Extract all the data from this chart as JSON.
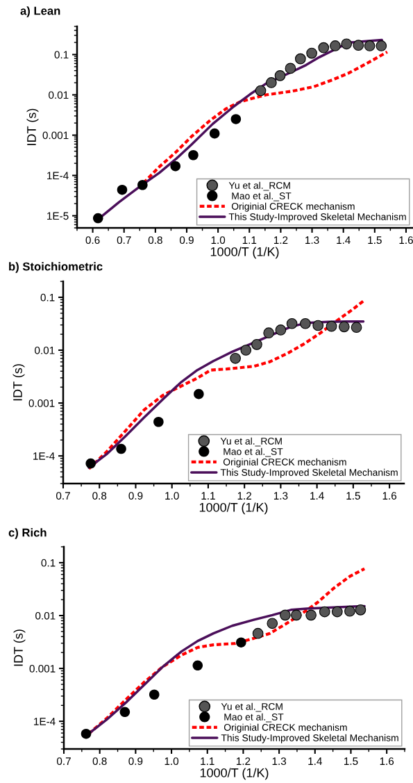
{
  "chart_data": [
    {
      "type": "line",
      "title": "a) Lean",
      "xlabel": "1000/T (1/K)",
      "ylabel": "IDT (s)",
      "log": "y",
      "xlim": [
        0.55,
        1.62
      ],
      "xticks": [
        {
          "value": 0.6,
          "label": "0.6"
        },
        {
          "value": 0.7,
          "label": "0.7"
        },
        {
          "value": 0.8,
          "label": "0.8"
        },
        {
          "value": 0.9,
          "label": "0.9"
        },
        {
          "value": 1.0,
          "label": "1.0"
        },
        {
          "value": 1.1,
          "label": "1.1"
        },
        {
          "value": 1.2,
          "label": "1.2"
        },
        {
          "value": 1.3,
          "label": "1.3"
        },
        {
          "value": 1.4,
          "label": "1.4"
        },
        {
          "value": 1.5,
          "label": "1.5"
        },
        {
          "value": 1.6,
          "label": "1.6"
        }
      ],
      "ylim": [
        5e-06,
        0.5
      ],
      "yticks": [
        {
          "value": 1e-05,
          "label": "1E-5"
        },
        {
          "value": 0.0001,
          "label": "1E-4"
        },
        {
          "value": 0.001,
          "label": "0.001"
        },
        {
          "value": 0.01,
          "label": "0.01"
        },
        {
          "value": 0.1,
          "label": "0.1"
        }
      ],
      "grid": false,
      "legend": "bottom right",
      "series": [
        {
          "name": "Yu et al._RCM",
          "type": "scatter",
          "marker": "circle",
          "color": "#555555",
          "x": [
            1.136,
            1.17,
            1.198,
            1.231,
            1.263,
            1.299,
            1.337,
            1.374,
            1.41,
            1.448,
            1.484,
            1.521
          ],
          "values": [
            0.0127,
            0.0201,
            0.03,
            0.0455,
            0.0785,
            0.108,
            0.148,
            0.165,
            0.183,
            0.17,
            0.165,
            0.165
          ]
        },
        {
          "name": " Mao et al._ST",
          "type": "scatter",
          "marker": "circle",
          "color": "#000000",
          "x": [
            0.617,
            0.694,
            0.759,
            0.864,
            0.921,
            0.989,
            1.057
          ],
          "values": [
            8.7e-06,
            4.4e-05,
            5.8e-05,
            0.00017,
            0.00032,
            0.0011,
            0.0025
          ]
        },
        {
          "name": " Originial CRECK mechanism",
          "line_style": "dashed",
          "marker": "none",
          "color": "#ff0000",
          "x": [
            0.762,
            0.813,
            0.864,
            0.915,
            0.974,
            1.025,
            1.068,
            1.11,
            1.153,
            1.238,
            1.306,
            1.366,
            1.417,
            1.476,
            1.54
          ],
          "values": [
            6.5e-05,
            0.000165,
            0.00037,
            0.00092,
            0.0023,
            0.0045,
            0.0066,
            0.0082,
            0.01,
            0.0124,
            0.016,
            0.0237,
            0.0347,
            0.061,
            0.116
          ]
        },
        {
          "name": "This Study-Improved Skeletal Mechanism",
          "line_style": "solid",
          "marker": "none",
          "color": "#4b0f5a",
          "x": [
            0.626,
            0.685,
            0.753,
            0.813,
            0.864,
            0.915,
            0.983,
            1.051,
            1.102,
            1.153,
            1.221,
            1.281,
            1.323,
            1.374,
            1.417,
            1.459,
            1.523
          ],
          "values": [
            9.3e-06,
            2.2e-05,
            5.5e-05,
            0.000117,
            0.00025,
            0.00058,
            0.0019,
            0.0052,
            0.0103,
            0.019,
            0.033,
            0.055,
            0.086,
            0.135,
            0.198,
            0.21,
            0.23
          ]
        }
      ]
    },
    {
      "type": "line",
      "title": "b) Stoichiometric",
      "xlabel": "1000/T (1/K)",
      "ylabel": "IDT (s)",
      "log": "y",
      "xlim": [
        0.7,
        1.64
      ],
      "xticks": [
        {
          "value": 0.7,
          "label": "0.7"
        },
        {
          "value": 0.8,
          "label": "0.8"
        },
        {
          "value": 0.9,
          "label": "0.9"
        },
        {
          "value": 1.0,
          "label": "1.0"
        },
        {
          "value": 1.1,
          "label": "1.1"
        },
        {
          "value": 1.2,
          "label": "1.2"
        },
        {
          "value": 1.3,
          "label": "1.3"
        },
        {
          "value": 1.4,
          "label": "1.4"
        },
        {
          "value": 1.5,
          "label": "1.5"
        },
        {
          "value": 1.6,
          "label": "1.6"
        }
      ],
      "ylim": [
        3e-05,
        0.2
      ],
      "yticks": [
        {
          "value": 0.0001,
          "label": "1E-4"
        },
        {
          "value": 0.001,
          "label": "0.001"
        },
        {
          "value": 0.01,
          "label": "0.01"
        },
        {
          "value": 0.1,
          "label": "0.1"
        }
      ],
      "grid": false,
      "legend": "bottom right",
      "series": [
        {
          "name": "Yu et al._RCM",
          "type": "scatter",
          "marker": "circle",
          "color": "#555555",
          "x": [
            1.175,
            1.204,
            1.234,
            1.267,
            1.3,
            1.331,
            1.368,
            1.403,
            1.44,
            1.475,
            1.509
          ],
          "values": [
            0.007,
            0.01,
            0.0128,
            0.0212,
            0.0241,
            0.0318,
            0.0318,
            0.0293,
            0.0283,
            0.0277,
            0.027
          ]
        },
        {
          "name": " Mao et al._ST",
          "type": "scatter",
          "marker": "circle",
          "color": "#000000",
          "x": [
            0.776,
            0.86,
            0.963,
            1.074
          ],
          "values": [
            7.2e-05,
            0.000136,
            0.00044,
            0.00148
          ]
        },
        {
          "name": " Originial CRECK mechanism",
          "line_style": "dashed",
          "marker": "none",
          "color": "#ff0000",
          "x": [
            0.771,
            0.82,
            0.872,
            0.923,
            0.975,
            1.026,
            1.07,
            1.107,
            1.151,
            1.225,
            1.269,
            1.32,
            1.364,
            1.408,
            1.452,
            1.497,
            1.53
          ],
          "values": [
            5.7e-05,
            0.00012,
            0.000298,
            0.00074,
            0.0014,
            0.0021,
            0.00296,
            0.0042,
            0.0044,
            0.00495,
            0.006,
            0.0088,
            0.0131,
            0.0208,
            0.0349,
            0.058,
            0.087
          ]
        },
        {
          "name": "This Study-Improved Skeletal Mechanism",
          "line_style": "solid",
          "marker": "none",
          "color": "#4b0f5a",
          "x": [
            0.771,
            0.82,
            0.872,
            0.923,
            0.975,
            1.026,
            1.07,
            1.114,
            1.166,
            1.225,
            1.276,
            1.328,
            1.372,
            1.431,
            1.482,
            1.528
          ],
          "values": [
            6e-05,
            0.000108,
            0.000237,
            0.00053,
            0.00118,
            0.0025,
            0.0042,
            0.0062,
            0.0093,
            0.0138,
            0.0195,
            0.0277,
            0.0329,
            0.0344,
            0.0348,
            0.0348
          ]
        }
      ]
    },
    {
      "type": "line",
      "title": "c) Rich",
      "xlabel": "1000/T (1/K)",
      "ylabel": "IDT (s)",
      "log": "y",
      "xlim": [
        0.7,
        1.65
      ],
      "xticks": [
        {
          "value": 0.7,
          "label": "0.7"
        },
        {
          "value": 0.8,
          "label": "0.8"
        },
        {
          "value": 0.9,
          "label": "0.9"
        },
        {
          "value": 1.0,
          "label": "1.0"
        },
        {
          "value": 1.1,
          "label": "1.1"
        },
        {
          "value": 1.2,
          "label": "1.2"
        },
        {
          "value": 1.3,
          "label": "1.3"
        },
        {
          "value": 1.4,
          "label": "1.4"
        },
        {
          "value": 1.5,
          "label": "1.5"
        },
        {
          "value": 1.6,
          "label": "1.6"
        }
      ],
      "ylim": [
        3e-05,
        0.2
      ],
      "yticks": [
        {
          "value": 0.0001,
          "label": "1E-4"
        },
        {
          "value": 0.001,
          "label": "0.001"
        },
        {
          "value": 0.01,
          "label": "0.01"
        },
        {
          "value": 0.1,
          "label": "0.1"
        }
      ],
      "grid": false,
      "legend": "bottom right",
      "series": [
        {
          "name": "Yu et al._RCM",
          "type": "scatter",
          "marker": "circle",
          "color": "#555555",
          "x": [
            1.241,
            1.281,
            1.317,
            1.348,
            1.389,
            1.427,
            1.462,
            1.497,
            1.527
          ],
          "values": [
            0.0046,
            0.0071,
            0.0102,
            0.0102,
            0.0102,
            0.0118,
            0.0118,
            0.0121,
            0.0128
          ]
        },
        {
          "name": " Mao et al._ST",
          "type": "scatter",
          "marker": "circle",
          "color": "#000000",
          "x": [
            0.762,
            0.87,
            0.952,
            1.073,
            1.194
          ],
          "values": [
            5.8e-05,
            0.00015,
            0.00032,
            0.00114,
            0.0031
          ]
        },
        {
          "name": " Originial CRECK mechanism",
          "line_style": "dashed",
          "marker": "none",
          "color": "#ff0000",
          "x": [
            0.769,
            0.819,
            0.871,
            0.924,
            0.976,
            1.028,
            1.073,
            1.117,
            1.177,
            1.229,
            1.274,
            1.318,
            1.363,
            1.408,
            1.453,
            1.497,
            1.538
          ],
          "values": [
            5.8e-05,
            0.000113,
            0.00025,
            0.00055,
            0.00108,
            0.00179,
            0.0025,
            0.0028,
            0.00297,
            0.0037,
            0.0046,
            0.0069,
            0.0108,
            0.0179,
            0.0332,
            0.055,
            0.077
          ]
        },
        {
          "name": "This Study-Improved Skeletal Mechanism",
          "line_style": "solid",
          "marker": "none",
          "color": "#4b0f5a",
          "x": [
            0.769,
            0.819,
            0.871,
            0.924,
            0.976,
            1.028,
            1.073,
            1.117,
            1.169,
            1.229,
            1.281,
            1.333,
            1.378,
            1.453,
            1.538
          ],
          "values": [
            5.8e-05,
            0.000107,
            0.00022,
            0.00049,
            0.00108,
            0.0021,
            0.0033,
            0.0046,
            0.0064,
            0.0083,
            0.0102,
            0.0128,
            0.0135,
            0.0143,
            0.0151
          ]
        }
      ]
    }
  ]
}
